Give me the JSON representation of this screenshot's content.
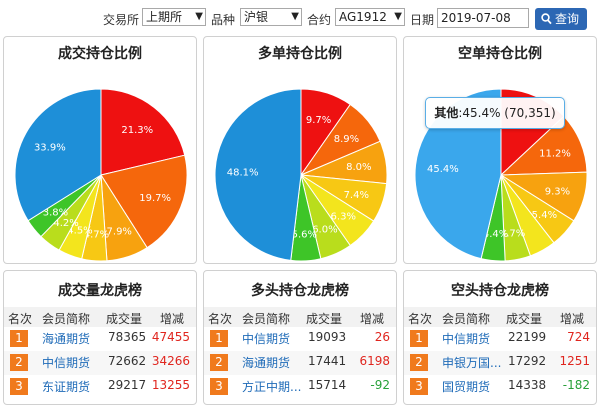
{
  "filter": {
    "exchange_label": "交易所",
    "exchange_value": "上期所",
    "product_label": "品种",
    "product_value": "沪银",
    "contract_label": "合约",
    "contract_value": "AG1912",
    "date_label": "日期",
    "date_value": "2019-07-08",
    "query_label": "查询"
  },
  "charts": [
    {
      "title": "成交持仓比例",
      "chart_data": {
        "type": "pie",
        "slices": [
          {
            "label": "21.3%",
            "value": 21.3,
            "color": "#ee1111"
          },
          {
            "label": "19.7%",
            "value": 19.7,
            "color": "#f5670c"
          },
          {
            "label": "7.9%",
            "value": 7.9,
            "color": "#f7a20f"
          },
          {
            "label": "4.7%",
            "value": 4.7,
            "color": "#f7c814"
          },
          {
            "label": "4.5%",
            "value": 4.5,
            "color": "#f3e51d"
          },
          {
            "label": "4.2%",
            "value": 4.2,
            "color": "#b9dd1c"
          },
          {
            "label": "3.8%",
            "value": 3.8,
            "color": "#3ec528"
          },
          {
            "label": "33.9%",
            "value": 33.9,
            "color": "#1e8fd8"
          }
        ]
      }
    },
    {
      "title": "多单持仓比例",
      "chart_data": {
        "type": "pie",
        "slices": [
          {
            "label": "9.7%",
            "value": 9.7,
            "color": "#ee1111"
          },
          {
            "label": "8.9%",
            "value": 8.9,
            "color": "#f5670c"
          },
          {
            "label": "8.0%",
            "value": 8.0,
            "color": "#f7a20f"
          },
          {
            "label": "7.4%",
            "value": 7.4,
            "color": "#f7c814"
          },
          {
            "label": "6.3%",
            "value": 6.3,
            "color": "#f3e51d"
          },
          {
            "label": "6.0%",
            "value": 6.0,
            "color": "#b9dd1c"
          },
          {
            "label": "5.6%",
            "value": 5.6,
            "color": "#3ec528"
          },
          {
            "label": "48.1%",
            "value": 48.1,
            "color": "#1e8fd8"
          }
        ]
      }
    },
    {
      "title": "空单持仓比例",
      "chart_data": {
        "type": "pie",
        "slices": [
          {
            "label": "",
            "value": 12.8,
            "color": "#ee1111"
          },
          {
            "label": "11.2%",
            "value": 11.2,
            "color": "#f5670c"
          },
          {
            "label": "9.3%",
            "value": 9.3,
            "color": "#f7a20f"
          },
          {
            "label": "5.4%",
            "value": 5.4,
            "color": "#f7c814"
          },
          {
            "label": "",
            "value": 4.9,
            "color": "#f3e51d"
          },
          {
            "label": "4.7%",
            "value": 4.7,
            "color": "#b9dd1c"
          },
          {
            "label": "4.4%",
            "value": 4.4,
            "color": "#3ec528"
          },
          {
            "label": "45.4%",
            "value": 45.4,
            "color": "#3aa7ec"
          }
        ],
        "tooltip": {
          "name": "其他",
          "text": ":45.4% (70,351)"
        }
      }
    }
  ],
  "tables": [
    {
      "title": "成交量龙虎榜",
      "headers": [
        "名次",
        "会员简称",
        "成交量",
        "增减"
      ],
      "rows": [
        {
          "rank": "1",
          "member": "海通期货",
          "value": "78365",
          "change": "47455",
          "sign": "pos"
        },
        {
          "rank": "2",
          "member": "中信期货",
          "value": "72662",
          "change": "34266",
          "sign": "pos"
        },
        {
          "rank": "3",
          "member": "东证期货",
          "value": "29217",
          "change": "13255",
          "sign": "pos"
        }
      ]
    },
    {
      "title": "多头持仓龙虎榜",
      "headers": [
        "名次",
        "会员简称",
        "成交量",
        "增减"
      ],
      "rows": [
        {
          "rank": "1",
          "member": "中信期货",
          "value": "19093",
          "change": "26",
          "sign": "pos"
        },
        {
          "rank": "2",
          "member": "海通期货",
          "value": "17441",
          "change": "6198",
          "sign": "pos"
        },
        {
          "rank": "3",
          "member": "方正中期...",
          "value": "15714",
          "change": "-92",
          "sign": "neg"
        }
      ]
    },
    {
      "title": "空头持仓龙虎榜",
      "headers": [
        "名次",
        "会员简称",
        "成交量",
        "增减"
      ],
      "rows": [
        {
          "rank": "1",
          "member": "中信期货",
          "value": "22199",
          "change": "724",
          "sign": "pos"
        },
        {
          "rank": "2",
          "member": "申银万国...",
          "value": "17292",
          "change": "1251",
          "sign": "pos"
        },
        {
          "rank": "3",
          "member": "国贸期货",
          "value": "14338",
          "change": "-182",
          "sign": "neg"
        }
      ]
    }
  ]
}
